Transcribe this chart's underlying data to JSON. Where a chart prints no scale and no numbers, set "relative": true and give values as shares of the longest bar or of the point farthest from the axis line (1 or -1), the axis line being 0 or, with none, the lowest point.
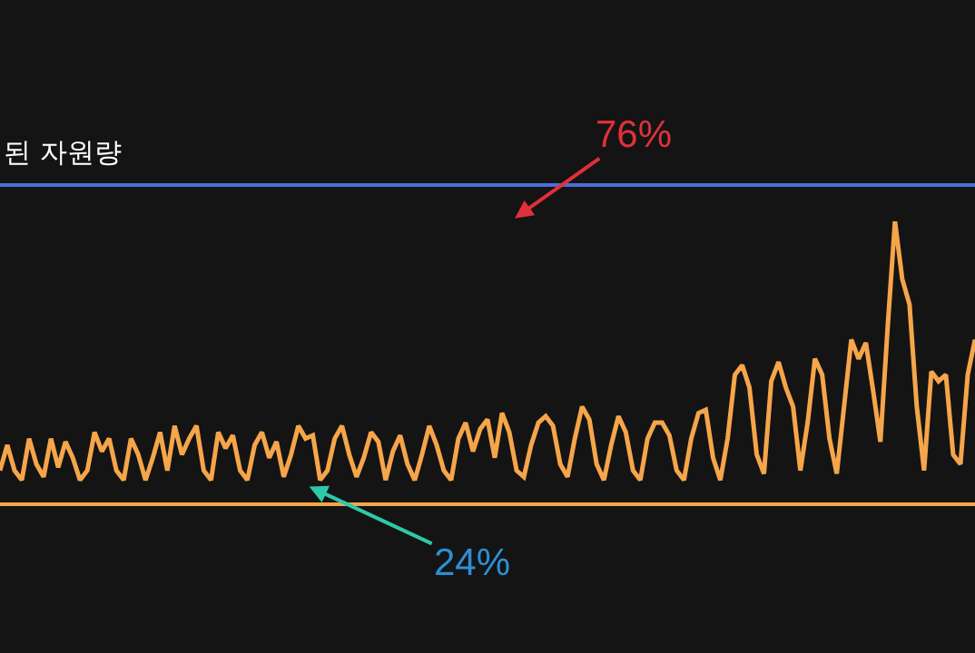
{
  "chart_data": {
    "type": "line",
    "relative": true,
    "categories": [
      null,
      null,
      null,
      null,
      null,
      null,
      null,
      null,
      null,
      null,
      null,
      null,
      null,
      null,
      null,
      null,
      null,
      null,
      null,
      null,
      null,
      null,
      null,
      null,
      null,
      null,
      null,
      null,
      null,
      null,
      null,
      null,
      null,
      null,
      null,
      null,
      null,
      null,
      null,
      null,
      null,
      null,
      null,
      null,
      null,
      null,
      null,
      null,
      null,
      null,
      null,
      null,
      null,
      null,
      null,
      null,
      null,
      null,
      null,
      null,
      null,
      null,
      null,
      null,
      null,
      null,
      null,
      null,
      null,
      null,
      null,
      null,
      null,
      null,
      null,
      null,
      null,
      null,
      null,
      null,
      null,
      null,
      null,
      null,
      null,
      null,
      null,
      null,
      null,
      null,
      null,
      null,
      null,
      null,
      null,
      null,
      null,
      null,
      null,
      null,
      null,
      null,
      null,
      null,
      null,
      null,
      null,
      null,
      null,
      null,
      null,
      null,
      null,
      null,
      null,
      null,
      null,
      null,
      null,
      null,
      null,
      null,
      null,
      null,
      null,
      null,
      null,
      null,
      null,
      null,
      null,
      null,
      null,
      null,
      null
    ],
    "series": [
      {
        "name": "된 자원량",
        "color": "#4a6fd8",
        "values": [
          1,
          1,
          1,
          1,
          1,
          1,
          1,
          1,
          1,
          1,
          1,
          1,
          1,
          1,
          1,
          1,
          1,
          1,
          1,
          1,
          1,
          1,
          1,
          1,
          1,
          1,
          1,
          1,
          1,
          1,
          1,
          1,
          1,
          1,
          1,
          1,
          1,
          1,
          1,
          1,
          1,
          1,
          1,
          1,
          1,
          1,
          1,
          1,
          1,
          1,
          1,
          1,
          1,
          1,
          1,
          1,
          1,
          1,
          1,
          1,
          1,
          1,
          1,
          1,
          1,
          1,
          1,
          1,
          1,
          1,
          1,
          1,
          1,
          1,
          1,
          1,
          1,
          1,
          1,
          1,
          1,
          1,
          1,
          1,
          1,
          1,
          1,
          1,
          1,
          1,
          1,
          1,
          1,
          1,
          1,
          1,
          1,
          1,
          1,
          1,
          1,
          1,
          1,
          1,
          1,
          1,
          1,
          1,
          1,
          1,
          1,
          1,
          1,
          1,
          1,
          1,
          1,
          1,
          1,
          1,
          1,
          1,
          1,
          1,
          1,
          1,
          1,
          1,
          1,
          1,
          1,
          1,
          1,
          1,
          1
        ]
      },
      {
        "color": "#f5a54a",
        "values": [
          0.1,
          0.18,
          0.1,
          0.07,
          0.2,
          0.12,
          0.08,
          0.2,
          0.11,
          0.19,
          0.14,
          0.07,
          0.1,
          0.22,
          0.16,
          0.2,
          0.1,
          0.07,
          0.2,
          0.15,
          0.07,
          0.14,
          0.22,
          0.1,
          0.24,
          0.15,
          0.2,
          0.24,
          0.1,
          0.07,
          0.22,
          0.17,
          0.21,
          0.1,
          0.07,
          0.18,
          0.22,
          0.14,
          0.19,
          0.08,
          0.15,
          0.24,
          0.2,
          0.21,
          0.07,
          0.1,
          0.2,
          0.24,
          0.15,
          0.08,
          0.14,
          0.22,
          0.19,
          0.07,
          0.16,
          0.21,
          0.12,
          0.07,
          0.15,
          0.24,
          0.18,
          0.1,
          0.07,
          0.2,
          0.25,
          0.16,
          0.23,
          0.26,
          0.14,
          0.28,
          0.22,
          0.1,
          0.08,
          0.18,
          0.25,
          0.27,
          0.24,
          0.12,
          0.08,
          0.2,
          0.3,
          0.26,
          0.12,
          0.07,
          0.18,
          0.27,
          0.22,
          0.1,
          0.07,
          0.2,
          0.25,
          0.25,
          0.21,
          0.1,
          0.07,
          0.2,
          0.28,
          0.29,
          0.14,
          0.07,
          0.2,
          0.4,
          0.43,
          0.36,
          0.15,
          0.09,
          0.38,
          0.44,
          0.36,
          0.3,
          0.1,
          0.25,
          0.45,
          0.4,
          0.2,
          0.09,
          0.3,
          0.51,
          0.45,
          0.5,
          0.35,
          0.19,
          0.55,
          0.88,
          0.7,
          0.62,
          0.3,
          0.1,
          0.41,
          0.38,
          0.4,
          0.15,
          0.12,
          0.4,
          0.51
        ]
      }
    ],
    "annotations": [
      "76%",
      "24%"
    ],
    "legend": false,
    "marker": "none",
    "line_style": "solid"
  }
}
